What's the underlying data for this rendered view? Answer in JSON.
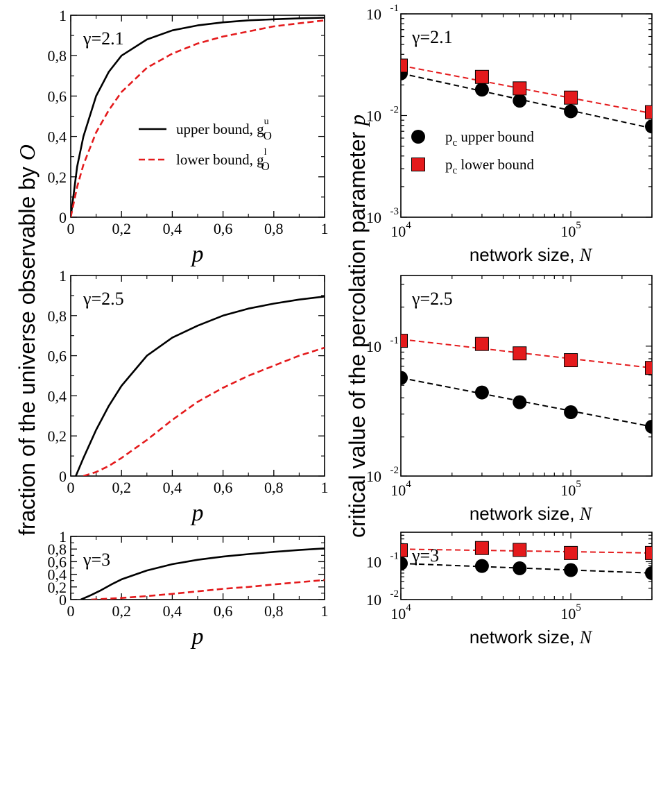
{
  "figure": {
    "left_ylabel_main": "fraction of the universe observable by ",
    "left_ylabel_var": "O",
    "right_ylabel_main": "critical value of the percolation parameter ",
    "right_ylabel_var": "p"
  },
  "chart_data": [
    {
      "type": "line",
      "annotation": "γ=2.1",
      "xlabel": "p",
      "xlim": [
        0,
        1
      ],
      "ylim": [
        0,
        1
      ],
      "xticks": [
        0,
        0.2,
        0.4,
        0.6,
        0.8,
        1
      ],
      "yticks": [
        0,
        0.2,
        0.4,
        0.6,
        0.8,
        1
      ],
      "xtick_labels": [
        "0",
        "0,2",
        "0,4",
        "0,6",
        "0,8",
        "1"
      ],
      "ytick_labels": [
        "0",
        "0,2",
        "0,4",
        "0,6",
        "0,8",
        "1"
      ],
      "legend": {
        "placement": "center-right"
      },
      "series": [
        {
          "name": "upper bound, g",
          "sup": "u",
          "sub": "O",
          "color": "#000000",
          "style": "solid",
          "x": [
            0,
            0.025,
            0.05,
            0.1,
            0.15,
            0.2,
            0.3,
            0.4,
            0.5,
            0.6,
            0.7,
            0.8,
            0.9,
            1.0
          ],
          "y": [
            0,
            0.25,
            0.4,
            0.6,
            0.72,
            0.8,
            0.88,
            0.925,
            0.95,
            0.965,
            0.975,
            0.98,
            0.985,
            0.988
          ]
        },
        {
          "name": "lower bound, g",
          "sup": "l",
          "sub": "O",
          "color": "#e41a1c",
          "style": "dashed",
          "x": [
            0,
            0.025,
            0.05,
            0.1,
            0.15,
            0.2,
            0.3,
            0.4,
            0.5,
            0.6,
            0.7,
            0.8,
            0.9,
            1.0
          ],
          "y": [
            0,
            0.15,
            0.26,
            0.42,
            0.53,
            0.62,
            0.74,
            0.81,
            0.86,
            0.895,
            0.92,
            0.945,
            0.96,
            0.975
          ]
        }
      ]
    },
    {
      "type": "scatter",
      "annotation": "γ=2.1",
      "xlabel_main": "network size, ",
      "xlabel_var": "N",
      "xscale": "log",
      "yscale": "log",
      "xlim": [
        10000,
        300000
      ],
      "ylim": [
        0.001,
        0.1
      ],
      "xticks": [
        10000,
        100000
      ],
      "yticks": [
        0.001,
        0.01,
        0.1
      ],
      "xtick_labels": [
        {
          "base": "10",
          "exp": "4"
        },
        {
          "base": "10",
          "exp": "5"
        }
      ],
      "ytick_labels": [
        {
          "base": "10",
          "exp": "-3"
        },
        {
          "base": "10",
          "exp": "-2"
        },
        {
          "base": "10",
          "exp": "-1"
        }
      ],
      "legend": {
        "placement": "center-left"
      },
      "series": [
        {
          "name": "p",
          "sub": "c",
          "suffix": " upper bound",
          "marker": "circle",
          "color": "#000000",
          "x": [
            10000,
            30000,
            50000,
            100000,
            300000
          ],
          "y": [
            0.026,
            0.018,
            0.014,
            0.011,
            0.0078
          ],
          "fit_y": [
            0.026,
            0.0075
          ]
        },
        {
          "name": "p",
          "sub": "c",
          "suffix": " lower bound",
          "marker": "square",
          "color": "#e41a1c",
          "x": [
            10000,
            30000,
            50000,
            100000,
            300000
          ],
          "y": [
            0.031,
            0.024,
            0.0185,
            0.015,
            0.0108
          ],
          "fit_y": [
            0.031,
            0.0105
          ]
        }
      ]
    },
    {
      "type": "line",
      "annotation": "γ=2.5",
      "xlabel": "p",
      "xlim": [
        0,
        1
      ],
      "ylim": [
        0,
        1
      ],
      "xticks": [
        0,
        0.2,
        0.4,
        0.6,
        0.8,
        1
      ],
      "yticks": [
        0,
        0.2,
        0.4,
        0.6,
        0.8,
        1
      ],
      "xtick_labels": [
        "0",
        "0,2",
        "0,4",
        "0,6",
        "0,8",
        "1"
      ],
      "ytick_labels": [
        "0",
        "0,2",
        "0,4",
        "0,6",
        "0,8",
        "1"
      ],
      "series": [
        {
          "color": "#000000",
          "style": "solid",
          "x": [
            0.02,
            0.05,
            0.1,
            0.15,
            0.2,
            0.3,
            0.4,
            0.5,
            0.6,
            0.7,
            0.8,
            0.9,
            1.0
          ],
          "y": [
            0,
            0.09,
            0.23,
            0.35,
            0.45,
            0.6,
            0.69,
            0.75,
            0.8,
            0.835,
            0.86,
            0.88,
            0.895
          ]
        },
        {
          "color": "#e41a1c",
          "style": "dashed",
          "x": [
            0.05,
            0.1,
            0.15,
            0.2,
            0.3,
            0.4,
            0.5,
            0.6,
            0.7,
            0.8,
            0.9,
            1.0
          ],
          "y": [
            0,
            0.02,
            0.05,
            0.09,
            0.18,
            0.28,
            0.37,
            0.44,
            0.5,
            0.55,
            0.6,
            0.64
          ]
        }
      ]
    },
    {
      "type": "scatter",
      "annotation": "γ=2.5",
      "xlabel_main": "network size, ",
      "xlabel_var": "N",
      "xscale": "log",
      "yscale": "log",
      "xlim": [
        10000,
        300000
      ],
      "ylim": [
        0.01,
        0.35
      ],
      "xticks": [
        10000,
        100000
      ],
      "yticks": [
        0.01,
        0.1
      ],
      "xtick_labels": [
        {
          "base": "10",
          "exp": "4"
        },
        {
          "base": "10",
          "exp": "5"
        }
      ],
      "ytick_labels": [
        {
          "base": "10",
          "exp": "-2"
        },
        {
          "base": "10",
          "exp": "-1"
        }
      ],
      "series": [
        {
          "marker": "circle",
          "color": "#000000",
          "x": [
            10000,
            30000,
            50000,
            100000,
            300000
          ],
          "y": [
            0.057,
            0.044,
            0.037,
            0.031,
            0.024
          ],
          "fit_y": [
            0.057,
            0.024
          ]
        },
        {
          "marker": "square",
          "color": "#e41a1c",
          "x": [
            10000,
            30000,
            50000,
            100000,
            300000
          ],
          "y": [
            0.11,
            0.104,
            0.088,
            0.078,
            0.068
          ],
          "fit_y": [
            0.113,
            0.068
          ]
        }
      ]
    },
    {
      "type": "line",
      "annotation": "γ=3",
      "xlabel": "p",
      "xlim": [
        0,
        1
      ],
      "ylim": [
        0,
        1
      ],
      "xticks": [
        0,
        0.2,
        0.4,
        0.6,
        0.8,
        1
      ],
      "yticks": [
        0,
        0.2,
        0.4,
        0.6,
        0.8,
        1
      ],
      "xtick_labels": [
        "0",
        "0,2",
        "0,4",
        "0,6",
        "0,8",
        "1"
      ],
      "ytick_labels": [
        "0",
        "0,2",
        "0,4",
        "0,6",
        "0,8",
        "1"
      ],
      "series": [
        {
          "color": "#000000",
          "style": "solid",
          "x": [
            0.04,
            0.08,
            0.12,
            0.16,
            0.2,
            0.3,
            0.4,
            0.5,
            0.6,
            0.7,
            0.8,
            0.9,
            1.0
          ],
          "y": [
            0,
            0.07,
            0.15,
            0.24,
            0.32,
            0.46,
            0.56,
            0.63,
            0.68,
            0.72,
            0.755,
            0.785,
            0.81
          ]
        },
        {
          "color": "#e41a1c",
          "style": "dashed",
          "x": [
            0.08,
            0.1,
            0.2,
            0.3,
            0.4,
            0.5,
            0.6,
            0.7,
            0.8,
            0.9,
            1.0
          ],
          "y": [
            0,
            0.003,
            0.025,
            0.055,
            0.09,
            0.13,
            0.17,
            0.2,
            0.24,
            0.275,
            0.31
          ]
        }
      ]
    },
    {
      "type": "scatter",
      "annotation": "γ=3",
      "xlabel_main": "network size, ",
      "xlabel_var": "N",
      "xscale": "log",
      "yscale": "log",
      "xlim": [
        10000,
        300000
      ],
      "ylim": [
        0.01,
        0.6
      ],
      "xticks": [
        10000,
        100000
      ],
      "yticks": [
        0.01,
        0.1
      ],
      "xtick_labels": [
        {
          "base": "10",
          "exp": "4"
        },
        {
          "base": "10",
          "exp": "5"
        }
      ],
      "ytick_labels": [
        {
          "base": "10",
          "exp": "-2"
        },
        {
          "base": "10",
          "exp": "-1"
        }
      ],
      "series": [
        {
          "marker": "circle",
          "color": "#000000",
          "x": [
            10000,
            30000,
            50000,
            100000,
            300000
          ],
          "y": [
            0.09,
            0.077,
            0.067,
            0.06,
            0.05
          ],
          "fit_y": [
            0.09,
            0.05
          ]
        },
        {
          "marker": "square",
          "color": "#e41a1c",
          "x": [
            10000,
            30000,
            50000,
            100000,
            300000
          ],
          "y": [
            0.2,
            0.23,
            0.205,
            0.17,
            0.17
          ],
          "fit_y": [
            0.215,
            0.17
          ]
        }
      ]
    }
  ]
}
